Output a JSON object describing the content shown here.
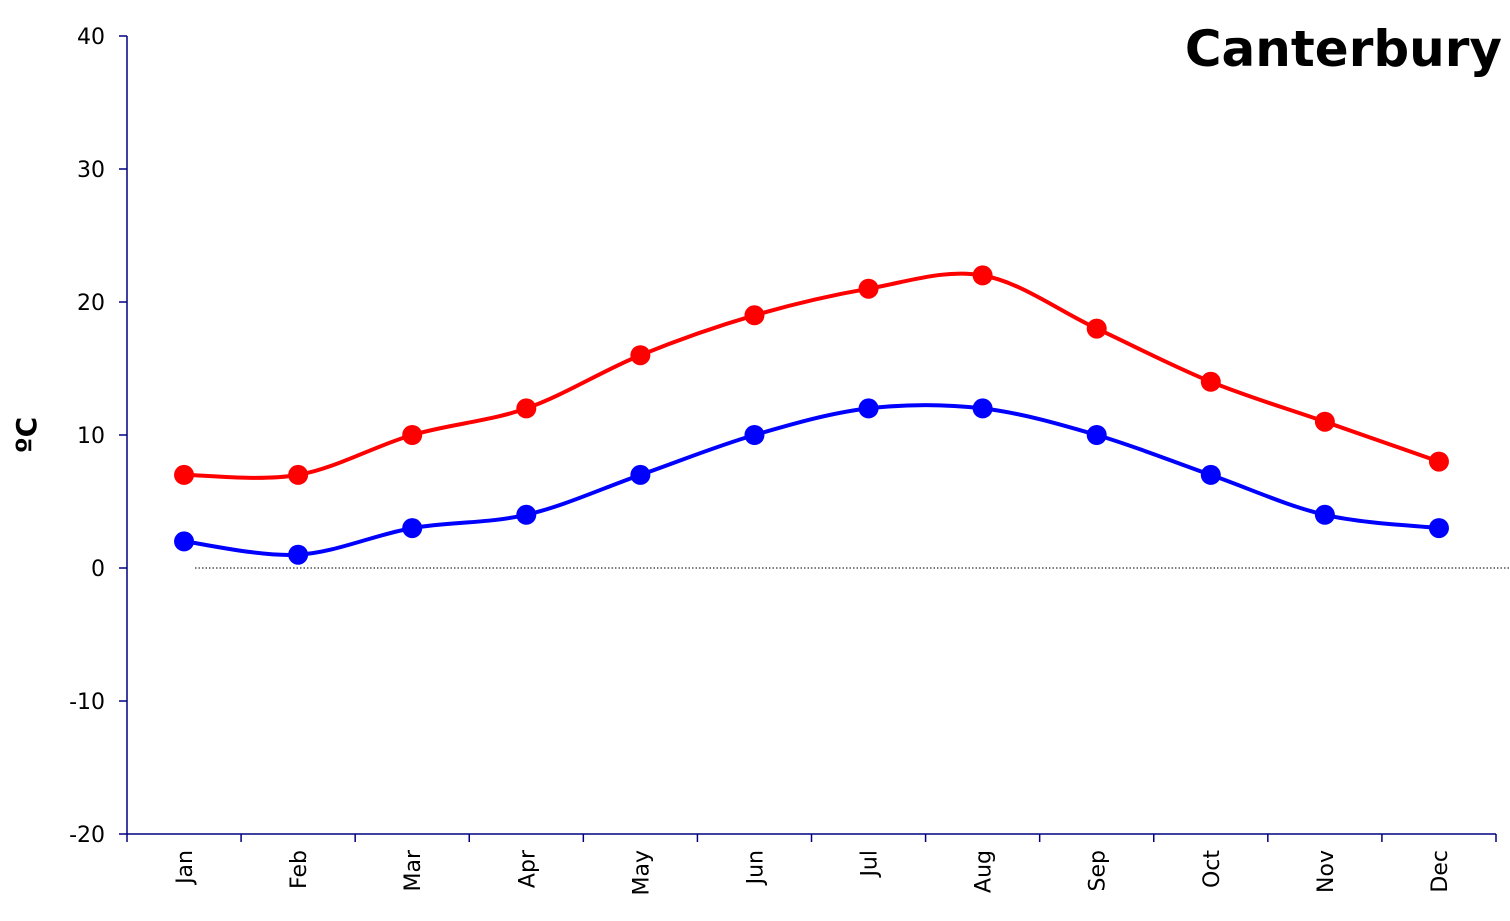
{
  "chart_data": {
    "type": "line",
    "title": "Canterbury",
    "xlabel": "",
    "ylabel": "ºC",
    "categories": [
      "Jan",
      "Feb",
      "Mar",
      "Apr",
      "May",
      "Jun",
      "Jul",
      "Aug",
      "Sep",
      "Oct",
      "Nov",
      "Dec"
    ],
    "ylim": [
      -20,
      40
    ],
    "yticks": [
      -20,
      -10,
      0,
      10,
      20,
      30,
      40
    ],
    "grid": false,
    "zero_line": true,
    "smooth": true,
    "series": [
      {
        "values": [
          7,
          7,
          10,
          12,
          16,
          19,
          21,
          22,
          18,
          14,
          11,
          8
        ],
        "color": "#ff0000"
      },
      {
        "values": [
          2,
          1,
          3,
          4,
          7,
          10,
          12,
          12,
          10,
          7,
          4,
          3
        ],
        "color": "#0000ff"
      }
    ]
  }
}
